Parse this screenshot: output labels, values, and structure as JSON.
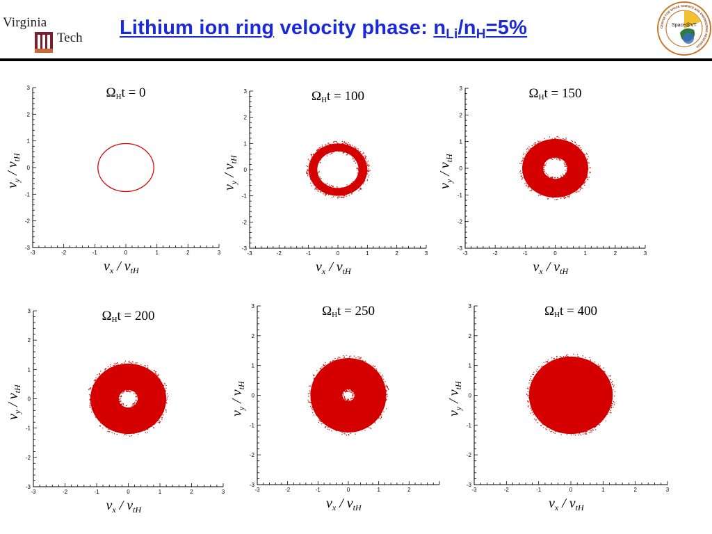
{
  "header": {
    "title_part1": "Lithium ion ring",
    "title_part2": " velocity phase: ",
    "title_n1": "n",
    "title_sub1": "Li",
    "title_slash": "/n",
    "title_sub2": "H",
    "title_end": "=5%",
    "logo_left_line1": "Virginia",
    "logo_left_line2": "Tech",
    "logo_right_text": "Space@VT",
    "logo_right_ring_text": "CENTER FOR SPACE SCIENCE AND ENGINEERING RESEARCH"
  },
  "colors": {
    "title": "#1a2ad6",
    "scatter": "#d40000"
  },
  "axis_labels": {
    "x": "v",
    "x_sub1": "x",
    "x_sep": " / v",
    "x_sub2": "tH",
    "y": "v",
    "y_sub1": "y",
    "y_sep": " / v",
    "y_sub2": "tH"
  },
  "chart_data": [
    {
      "type": "scatter",
      "title_prefix": "Ω",
      "title_sub": "H",
      "title_text": "t = 0",
      "xlim": [
        -3,
        3
      ],
      "ylim": [
        -3,
        3
      ],
      "xticks": [
        -3,
        -2,
        -1,
        0,
        1,
        2,
        3
      ],
      "yticks": [
        -3,
        -2,
        -1,
        0,
        1,
        2,
        3
      ],
      "distribution": "thin ring",
      "ring_inner_radius": 0.9,
      "ring_outer_radius": 0.9
    },
    {
      "type": "scatter",
      "title_prefix": "Ω",
      "title_sub": "H",
      "title_text": "t = 100",
      "xlim": [
        -3,
        3
      ],
      "ylim": [
        -3,
        3
      ],
      "xticks": [
        -3,
        -2,
        -1,
        0,
        1,
        2,
        3
      ],
      "yticks": [
        -3,
        -2,
        -1,
        0,
        1,
        2,
        3
      ],
      "distribution": "ring",
      "ring_inner_radius": 0.7,
      "ring_outer_radius": 1.0
    },
    {
      "type": "scatter",
      "title_prefix": "Ω",
      "title_sub": "H",
      "title_text": "t = 150",
      "xlim": [
        -3,
        3
      ],
      "ylim": [
        -3,
        3
      ],
      "xticks": [
        -3,
        -2,
        -1,
        0,
        1,
        2,
        3
      ],
      "yticks": [
        -3,
        -2,
        -1,
        0,
        1,
        2,
        3
      ],
      "distribution": "ring",
      "ring_inner_radius": 0.4,
      "ring_outer_radius": 1.1
    },
    {
      "type": "scatter",
      "title_prefix": "Ω",
      "title_sub": "H",
      "title_text": "t = 200",
      "xlim": [
        -3,
        3
      ],
      "ylim": [
        -3,
        3
      ],
      "xticks": [
        -3,
        -2,
        -1,
        0,
        1,
        2,
        3
      ],
      "yticks": [
        -3,
        -2,
        -1,
        0,
        1,
        2,
        3
      ],
      "distribution": "ring",
      "ring_inner_radius": 0.3,
      "ring_outer_radius": 1.2
    },
    {
      "type": "scatter",
      "title_prefix": "Ω",
      "title_sub": "H",
      "title_text": "t = 250",
      "xlim": [
        -3,
        3
      ],
      "ylim": [
        -3,
        3
      ],
      "xticks": [
        -3,
        -2,
        -1,
        0,
        1,
        2
      ],
      "yticks": [
        -3,
        -2,
        -1,
        0,
        1,
        2,
        3
      ],
      "distribution": "ring",
      "ring_inner_radius": 0.2,
      "ring_outer_radius": 1.25
    },
    {
      "type": "scatter",
      "title_prefix": "Ω",
      "title_sub": "H",
      "title_text": "t = 400",
      "xlim": [
        -3,
        3
      ],
      "ylim": [
        -3,
        3
      ],
      "xticks": [
        -3,
        -2,
        -1,
        0,
        1,
        2,
        3
      ],
      "yticks": [
        -3,
        -2,
        -1,
        0,
        1,
        2,
        3
      ],
      "distribution": "filled disk",
      "ring_inner_radius": 0.0,
      "ring_outer_radius": 1.3
    }
  ]
}
